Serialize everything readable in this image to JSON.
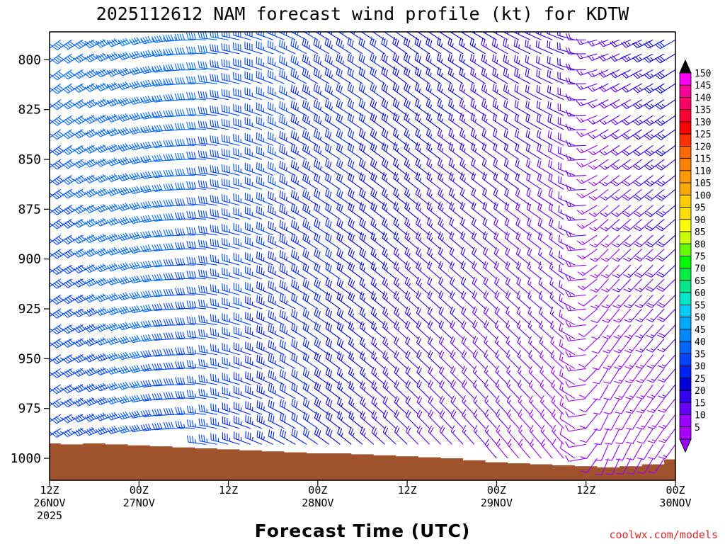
{
  "chart_data": {
    "type": "wind-barb-time-height",
    "title": "2025112612 NAM forecast wind profile (kt) for KDTW",
    "xlabel": "Forecast Time (UTC)",
    "credit": "coolwx.com/models",
    "y_axis": {
      "unit": "hPa",
      "range": [
        1011,
        786
      ],
      "ticks": [
        {
          "value": 800,
          "label": "800"
        },
        {
          "value": 825,
          "label": "825"
        },
        {
          "value": 850,
          "label": "850"
        },
        {
          "value": 875,
          "label": "875"
        },
        {
          "value": 900,
          "label": "900"
        },
        {
          "value": 925,
          "label": "925"
        },
        {
          "value": 950,
          "label": "950"
        },
        {
          "value": 975,
          "label": "975"
        },
        {
          "value": 1000,
          "label": "1000"
        }
      ]
    },
    "x_axis": {
      "unit": "forecast hour",
      "range": [
        0,
        84
      ],
      "ticks": [
        {
          "hour": 0,
          "line1": "12Z",
          "line2": "26NOV",
          "line3": "2025"
        },
        {
          "hour": 12,
          "line1": "00Z",
          "line2": "27NOV",
          "line3": ""
        },
        {
          "hour": 24,
          "line1": "12Z",
          "line2": "",
          "line3": ""
        },
        {
          "hour": 36,
          "line1": "00Z",
          "line2": "28NOV",
          "line3": ""
        },
        {
          "hour": 48,
          "line1": "12Z",
          "line2": "",
          "line3": ""
        },
        {
          "hour": 60,
          "line1": "00Z",
          "line2": "29NOV",
          "line3": ""
        },
        {
          "hour": 72,
          "line1": "12Z",
          "line2": "",
          "line3": ""
        },
        {
          "hour": 84,
          "line1": "00Z",
          "line2": "30NOV",
          "line3": ""
        }
      ]
    },
    "surface_pressure": {
      "hours": [
        0,
        3,
        6,
        9,
        12,
        15,
        18,
        21,
        24,
        27,
        30,
        33,
        36,
        39,
        42,
        45,
        48,
        51,
        54,
        57,
        60,
        63,
        66,
        69,
        72,
        75,
        78,
        81,
        84
      ],
      "hpa": [
        992.5,
        993,
        992.5,
        993,
        993.5,
        994,
        994.5,
        995,
        995.5,
        996,
        996.5,
        997,
        997.5,
        997.5,
        998,
        998.5,
        999,
        999.5,
        1000,
        1001,
        1002,
        1002.5,
        1003,
        1003.5,
        1004,
        1004.5,
        1004,
        1003,
        1000.5
      ]
    },
    "barbs": {
      "hour_step": 1,
      "pressure_levels": [
        790,
        797,
        805,
        812,
        820,
        828,
        835,
        843,
        850,
        858,
        865,
        873,
        880,
        888,
        895,
        903,
        910,
        918,
        925,
        933,
        940,
        948,
        955,
        963,
        970,
        978,
        985,
        993,
        1000
      ],
      "description": "SW-W flow 30-50 kt early, veering NW and weakening to 10-20 kt by 29NOV, backing SW after 12Z 29NOV",
      "key_points": [
        {
          "hour": 0,
          "speed_low": 35,
          "speed_high": 40,
          "dir_low": 235,
          "dir_high": 230
        },
        {
          "hour": 12,
          "speed_low": 40,
          "speed_high": 45,
          "dir_low": 255,
          "dir_high": 250
        },
        {
          "hour": 24,
          "speed_low": 35,
          "speed_high": 40,
          "dir_low": 285,
          "dir_high": 280
        },
        {
          "hour": 36,
          "speed_low": 30,
          "speed_high": 35,
          "dir_low": 305,
          "dir_high": 300
        },
        {
          "hour": 48,
          "speed_low": 20,
          "speed_high": 30,
          "dir_low": 315,
          "dir_high": 305
        },
        {
          "hour": 60,
          "speed_low": 15,
          "speed_high": 25,
          "dir_low": 320,
          "dir_high": 300
        },
        {
          "hour": 70,
          "speed_low": 12,
          "speed_high": 22,
          "dir_low": 320,
          "dir_high": 290
        },
        {
          "hour": 74,
          "speed_low": 10,
          "speed_high": 15,
          "dir_low": 200,
          "dir_high": 250
        },
        {
          "hour": 84,
          "speed_low": 12,
          "speed_high": 30,
          "dir_low": 215,
          "dir_high": 240
        }
      ]
    },
    "colorbar": {
      "labels": [
        "150",
        "145",
        "140",
        "135",
        "130",
        "125",
        "120",
        "115",
        "110",
        "105",
        "100",
        "95",
        "90",
        "85",
        "80",
        "75",
        "70",
        "65",
        "60",
        "55",
        "50",
        "45",
        "40",
        "35",
        "30",
        "25",
        "20",
        "15",
        "10",
        "5"
      ],
      "colors": [
        "#ff00ff",
        "#ff0099",
        "#ff0066",
        "#ff0033",
        "#ff0000",
        "#ff3300",
        "#ff6600",
        "#ff8000",
        "#ff9900",
        "#ffaa00",
        "#ffcc00",
        "#ffdd00",
        "#ffff00",
        "#ccff00",
        "#66ff00",
        "#00ff00",
        "#00ee44",
        "#00e88a",
        "#00e6cc",
        "#00ccff",
        "#00aaff",
        "#0088ff",
        "#0066ff",
        "#0044ff",
        "#0022ee",
        "#0000dd",
        "#3300ee",
        "#6600ff",
        "#9900ff",
        "#aa00ff"
      ],
      "top_arrow_color": "#000000",
      "bottom_arrow_color": "#9900ff"
    },
    "colors": {
      "ground": "#a0522d",
      "frame": "#000000"
    }
  }
}
